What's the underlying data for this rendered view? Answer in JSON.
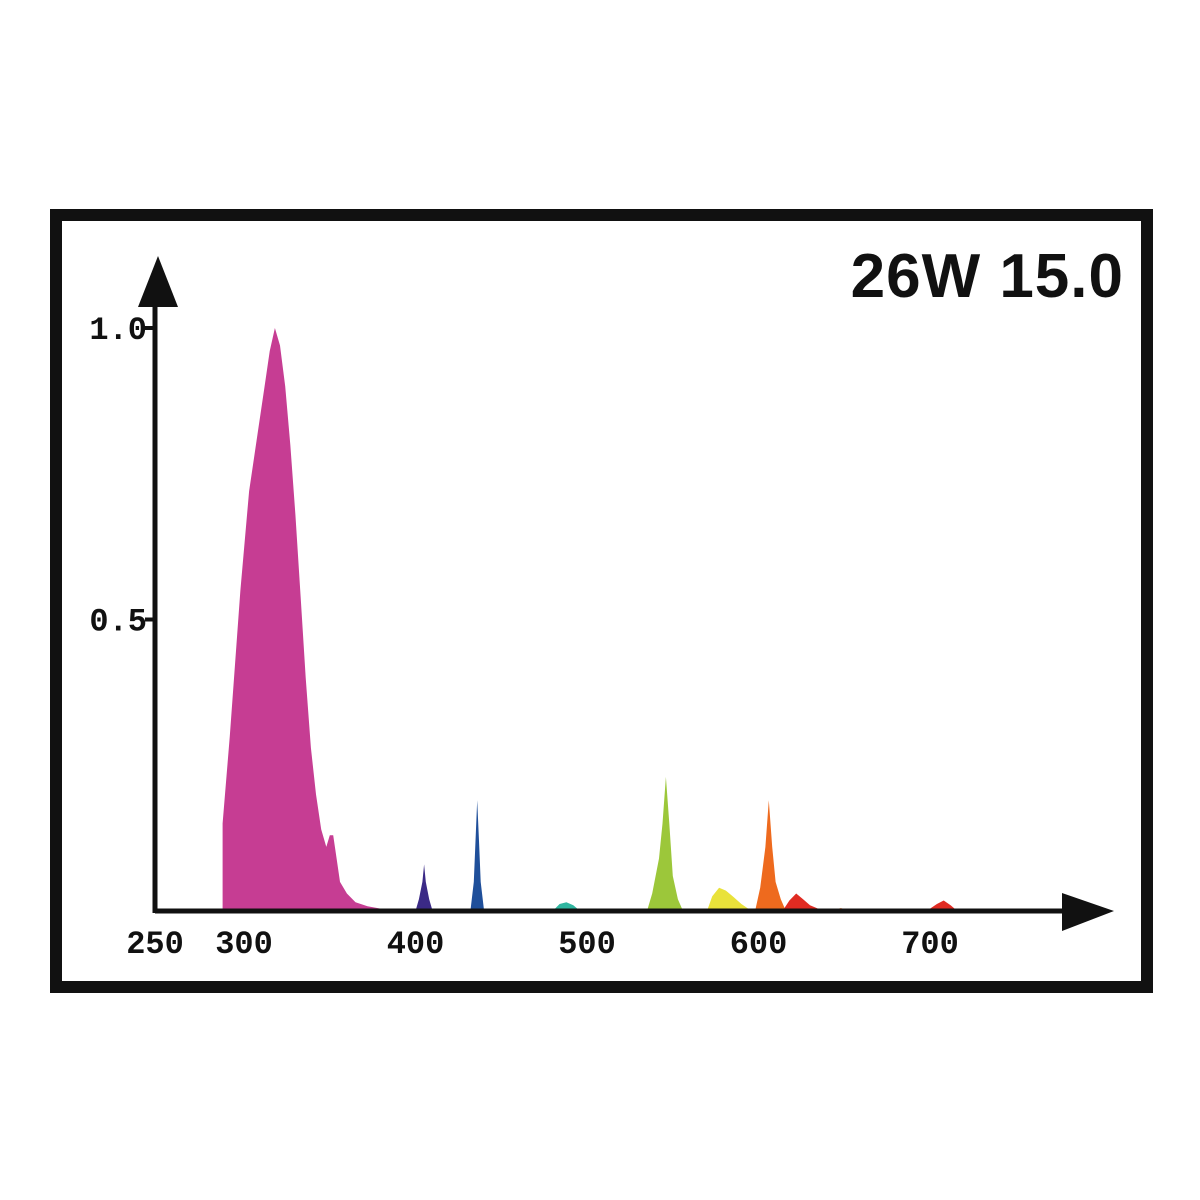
{
  "chart_data": {
    "type": "area",
    "title": "26W 15.0",
    "xlabel": "",
    "ylabel": "",
    "x_ticks": [
      {
        "value": 250,
        "label": "250"
      },
      {
        "value": 300,
        "label": "300"
      },
      {
        "value": 400,
        "label": "400"
      },
      {
        "value": 500,
        "label": "500"
      },
      {
        "value": 600,
        "label": "600"
      },
      {
        "value": 700,
        "label": "700"
      }
    ],
    "y_ticks": [
      {
        "value": 0.5,
        "label": "0.5"
      },
      {
        "value": 1.0,
        "label": "1.0"
      }
    ],
    "xlim": [
      250,
      780
    ],
    "ylim": [
      0,
      1.0
    ],
    "grid": false,
    "legend": "none",
    "colors": {
      "uv": "#c63d93",
      "violet": "#3b2a86",
      "blue": "#1f4f9a",
      "cyan": "#2fb6a0",
      "green": "#9cc73a",
      "yellow": "#e9e23a",
      "orange": "#ee6a1e",
      "red": "#e02b22"
    },
    "series": [
      {
        "color": "uv",
        "points": [
          [
            288,
            0
          ],
          [
            288,
            0.15
          ],
          [
            292,
            0.3
          ],
          [
            298,
            0.55
          ],
          [
            303,
            0.72
          ],
          [
            308,
            0.82
          ],
          [
            312,
            0.9
          ],
          [
            315,
            0.96
          ],
          [
            318,
            1.0
          ],
          [
            321,
            0.97
          ],
          [
            324,
            0.9
          ],
          [
            327,
            0.8
          ],
          [
            330,
            0.68
          ],
          [
            333,
            0.54
          ],
          [
            336,
            0.4
          ],
          [
            339,
            0.28
          ],
          [
            342,
            0.2
          ],
          [
            345,
            0.14
          ],
          [
            348,
            0.11
          ],
          [
            350,
            0.13
          ],
          [
            352,
            0.13
          ],
          [
            354,
            0.09
          ],
          [
            356,
            0.05
          ],
          [
            360,
            0.03
          ],
          [
            365,
            0.015
          ],
          [
            372,
            0.008
          ],
          [
            380,
            0.004
          ],
          [
            390,
            0.002
          ],
          [
            400,
            0
          ]
        ]
      },
      {
        "color": "violet",
        "points": [
          [
            400,
            0
          ],
          [
            402,
            0.02
          ],
          [
            404,
            0.05
          ],
          [
            405,
            0.08
          ],
          [
            406,
            0.05
          ],
          [
            408,
            0.02
          ],
          [
            410,
            0
          ]
        ]
      },
      {
        "color": "blue",
        "points": [
          [
            432,
            0
          ],
          [
            434,
            0.05
          ],
          [
            435,
            0.12
          ],
          [
            436,
            0.19
          ],
          [
            437,
            0.12
          ],
          [
            438,
            0.05
          ],
          [
            440,
            0
          ]
        ]
      },
      {
        "color": "cyan",
        "points": [
          [
            480,
            0
          ],
          [
            484,
            0.012
          ],
          [
            488,
            0.015
          ],
          [
            492,
            0.01
          ],
          [
            496,
            0
          ]
        ]
      },
      {
        "color": "green",
        "points": [
          [
            535,
            0
          ],
          [
            538,
            0.03
          ],
          [
            542,
            0.09
          ],
          [
            544,
            0.15
          ],
          [
            546,
            0.23
          ],
          [
            548,
            0.15
          ],
          [
            550,
            0.06
          ],
          [
            553,
            0.02
          ],
          [
            556,
            0
          ]
        ]
      },
      {
        "color": "yellow",
        "points": [
          [
            570,
            0
          ],
          [
            573,
            0.025
          ],
          [
            577,
            0.04
          ],
          [
            581,
            0.035
          ],
          [
            585,
            0.025
          ],
          [
            590,
            0.012
          ],
          [
            596,
            0
          ]
        ]
      },
      {
        "color": "orange",
        "points": [
          [
            598,
            0
          ],
          [
            601,
            0.04
          ],
          [
            604,
            0.11
          ],
          [
            606,
            0.19
          ],
          [
            608,
            0.11
          ],
          [
            610,
            0.05
          ],
          [
            613,
            0.02
          ],
          [
            616,
            0
          ]
        ]
      },
      {
        "color": "red",
        "points": [
          [
            614,
            0
          ],
          [
            618,
            0.018
          ],
          [
            622,
            0.03
          ],
          [
            626,
            0.02
          ],
          [
            630,
            0.01
          ],
          [
            638,
            0
          ]
        ]
      },
      {
        "color": "orange",
        "points": [
          [
            640,
            0
          ],
          [
            648,
            0.005
          ],
          [
            656,
            0
          ]
        ]
      },
      {
        "color": "red",
        "points": [
          [
            698,
            0
          ],
          [
            704,
            0.012
          ],
          [
            708,
            0.018
          ],
          [
            712,
            0.01
          ],
          [
            716,
            0
          ]
        ]
      }
    ]
  }
}
